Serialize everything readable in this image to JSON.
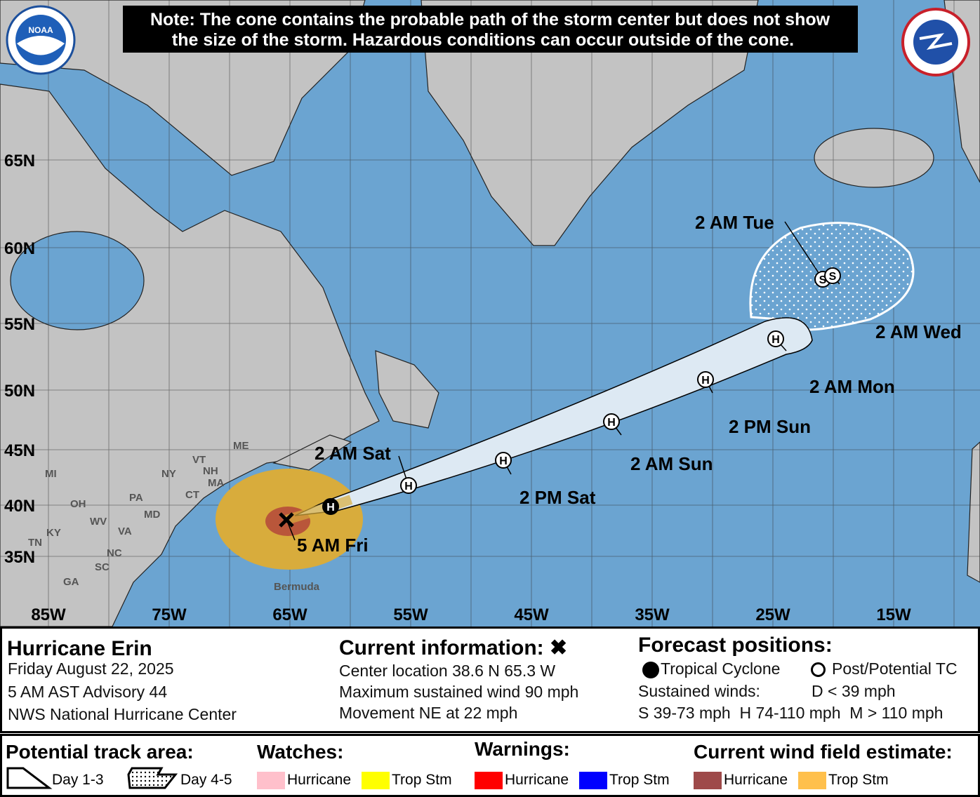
{
  "banner": {
    "line1": "Note: The cone contains the probable path of the storm center but does not show",
    "line2": "the size of the storm. Hazardous conditions can occur outside of the cone."
  },
  "logos": {
    "noaa": "NOAA",
    "nws": "NATIONAL WEATHER SERVICE"
  },
  "colors": {
    "ocean": "#6ba4d1",
    "land": "#c3c3c3",
    "cone": "#dde9f3",
    "trop_storm_wind": "#d8ac3c",
    "hurricane_wind": "#b9563a"
  },
  "lat_labels": [
    "65N",
    "60N",
    "55N",
    "50N",
    "45N",
    "40N",
    "35N"
  ],
  "lon_labels": [
    "85W",
    "75W",
    "65W",
    "55W",
    "45W",
    "35W",
    "25W",
    "15W"
  ],
  "states": [
    "ME",
    "VT",
    "NH",
    "NY",
    "MA",
    "CT",
    "MI",
    "PA",
    "OH",
    "MD",
    "WV",
    "VA",
    "KY",
    "NC",
    "TN",
    "SC",
    "GA"
  ],
  "places": {
    "bermuda": "Bermuda"
  },
  "track": {
    "current": {
      "label": "5 AM Fri",
      "icon": "x-icon"
    },
    "points": [
      {
        "symbol": "H",
        "label": "",
        "filled": true
      },
      {
        "symbol": "H",
        "label": "2 AM Sat",
        "filled": false
      },
      {
        "symbol": "H",
        "label": "2 PM Sat",
        "filled": false
      },
      {
        "symbol": "H",
        "label": "2 AM Sun",
        "filled": false
      },
      {
        "symbol": "H",
        "label": "2 PM Sun",
        "filled": false
      },
      {
        "symbol": "H",
        "label": "2 AM Mon",
        "filled": false
      },
      {
        "symbol": "S",
        "label": "2 AM Tue",
        "filled": false
      },
      {
        "symbol": "S",
        "label": "2 AM Wed",
        "filled": false
      }
    ]
  },
  "info": {
    "storm_name": "Hurricane Erin",
    "date": "Friday August 22, 2025",
    "advisory": "5 AM AST Advisory 44",
    "center": "NWS National Hurricane Center",
    "current_title": "Current information: ✖",
    "location": "Center location 38.6 N 65.3 W",
    "max_wind": "Maximum sustained wind 90 mph",
    "movement": "Movement NE at 22 mph",
    "forecast_title": "Forecast positions:",
    "tropical_cyclone": "Tropical Cyclone",
    "post_tc": "Post/Potential TC",
    "sustained": "Sustained winds:",
    "d": "D < 39 mph",
    "shm": "S 39-73 mph  H 74-110 mph  M > 110 mph"
  },
  "legend": {
    "track_title": "Potential track area:",
    "day13": "Day 1-3",
    "day45": "Day 4-5",
    "watches_title": "Watches:",
    "warnings_title": "Warnings:",
    "wind_title": "Current wind field estimate:",
    "hurricane": "Hurricane",
    "trop_stm": "Trop Stm",
    "colors": {
      "watch_hurricane": "#ffc0cb",
      "watch_ts": "#ffff00",
      "warn_hurricane": "#ff0000",
      "warn_ts": "#0000ff",
      "wind_hurricane": "#9e4a4a",
      "wind_ts": "#ffc04c"
    }
  }
}
